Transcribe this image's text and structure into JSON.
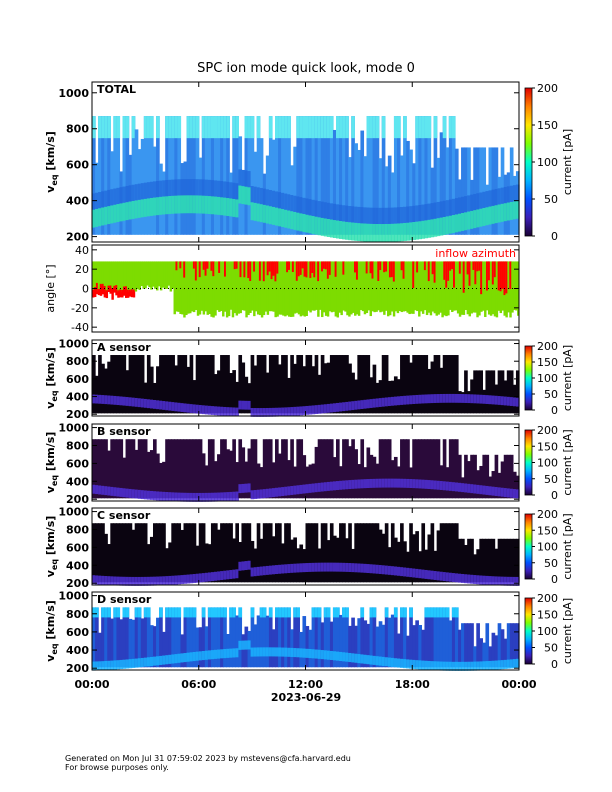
{
  "title": "SPC ion mode quick look, mode 0",
  "footer": {
    "line1": "Generated on Mon Jul 31 07:59:02 2023 by mstevens@cfa.harvard.edu",
    "line2": "For browse purposes only."
  },
  "date_label": "2023-06-29",
  "colors": {
    "colormap": [
      "#1a0033",
      "#3b1fb8",
      "#0050ff",
      "#00b4ff",
      "#00ffc8",
      "#7dff00",
      "#ffe600",
      "#ff8000",
      "#e00000"
    ],
    "inflow_green": "#7ddc00",
    "inflow_red": "#ff0000"
  },
  "chart_data": [
    {
      "type": "heatmap",
      "panel_label": "TOTAL",
      "ylabel_main": "v",
      "ylabel_sub": "eq",
      "ylabel_unit": "[km/s]",
      "ylim": [
        170,
        1060
      ],
      "yticks": [
        200,
        400,
        600,
        800,
        1000
      ],
      "colorbar": {
        "label": "current [pA]",
        "range": [
          0,
          200
        ],
        "ticks": [
          0,
          50,
          100,
          150,
          200
        ]
      },
      "x_range_hours": [
        0,
        24
      ]
    },
    {
      "type": "line",
      "panel_label": "inflow azimuth",
      "ylabel": "angle [°]",
      "ylim": [
        -45,
        45
      ],
      "yticks": [
        -40,
        -20,
        0,
        20,
        40
      ],
      "series": [
        {
          "name": "inflow azimuth",
          "color": "#ff0000"
        }
      ]
    },
    {
      "type": "heatmap",
      "panel_label": "A sensor",
      "ylim": [
        180,
        1040
      ],
      "yticks": [
        200,
        400,
        600,
        800,
        1000
      ],
      "colorbar": {
        "label": "current [pA]",
        "range": [
          0,
          200
        ],
        "ticks": [
          0,
          50,
          100,
          150,
          200
        ]
      }
    },
    {
      "type": "heatmap",
      "panel_label": "B sensor",
      "ylim": [
        180,
        1040
      ],
      "yticks": [
        200,
        400,
        600,
        800,
        1000
      ],
      "colorbar": {
        "label": "current [pA]",
        "range": [
          0,
          200
        ],
        "ticks": [
          0,
          50,
          100,
          150,
          200
        ]
      }
    },
    {
      "type": "heatmap",
      "panel_label": "C sensor",
      "ylim": [
        180,
        1040
      ],
      "yticks": [
        200,
        400,
        600,
        800,
        1000
      ],
      "colorbar": {
        "label": "current [pA]",
        "range": [
          0,
          200
        ],
        "ticks": [
          0,
          50,
          100,
          150,
          200
        ]
      }
    },
    {
      "type": "heatmap",
      "panel_label": "D sensor",
      "ylim": [
        180,
        1040
      ],
      "yticks": [
        200,
        400,
        600,
        800,
        1000
      ],
      "colorbar": {
        "label": "current [pA]",
        "range": [
          0,
          200
        ],
        "ticks": [
          0,
          50,
          100,
          150,
          200
        ]
      }
    }
  ],
  "xaxis": {
    "ticks": [
      "00:00",
      "06:00",
      "12:00",
      "18:00",
      "00:00"
    ],
    "tick_hours": [
      0,
      6,
      12,
      18,
      24
    ]
  }
}
